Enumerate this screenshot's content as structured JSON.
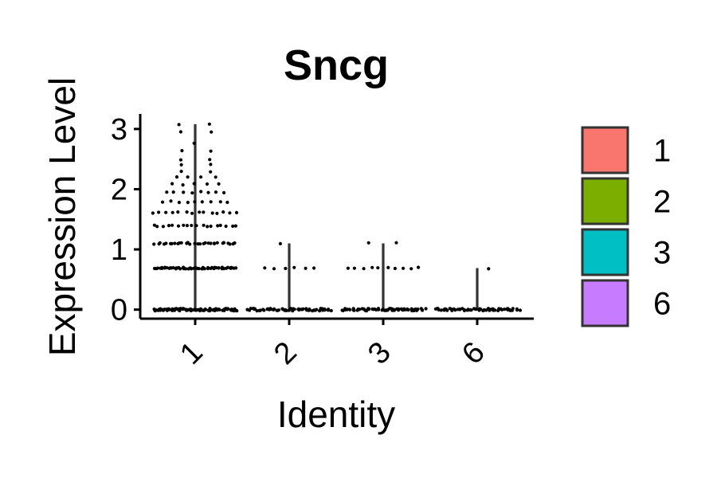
{
  "chart_data": {
    "type": "violin",
    "title": "Sncg",
    "xlabel": "Identity",
    "ylabel": "Expression Level",
    "categories": [
      "1",
      "2",
      "3",
      "6"
    ],
    "ylim": [
      -0.15,
      3.25
    ],
    "yticks": [
      0,
      1,
      2,
      3
    ],
    "y_tick_labels": [
      "0",
      "1",
      "2",
      "3"
    ],
    "x_tick_rotation_deg": 45,
    "grid": false,
    "legend": {
      "position": "right",
      "entries": [
        {
          "label": "1",
          "color": "#F8766D"
        },
        {
          "label": "2",
          "color": "#7CAE00"
        },
        {
          "label": "3",
          "color": "#00BFC4"
        },
        {
          "label": "6",
          "color": "#C77CFF"
        }
      ]
    },
    "series": [
      {
        "name": "1",
        "color": "#F8766D",
        "max": 3.08,
        "points": [
          {
            "y": 0,
            "n": 90
          },
          {
            "y": 0.69,
            "n": 55
          },
          {
            "y": 1.1,
            "n": 30
          },
          {
            "y": 1.39,
            "n": 18
          },
          {
            "y": 1.61,
            "n": 14
          },
          {
            "y": 1.79,
            "n": 9
          },
          {
            "y": 1.95,
            "n": 8
          },
          {
            "y": 2.08,
            "n": 5
          },
          {
            "y": 2.2,
            "n": 4
          },
          {
            "y": 2.3,
            "n": 2
          },
          {
            "y": 2.4,
            "n": 2
          },
          {
            "y": 2.48,
            "n": 2
          },
          {
            "y": 2.64,
            "n": 2
          },
          {
            "y": 2.77,
            "n": 1
          },
          {
            "y": 2.94,
            "n": 2
          },
          {
            "y": 3.07,
            "n": 2
          }
        ]
      },
      {
        "name": "2",
        "color": "#7CAE00",
        "max": 1.1,
        "points": [
          {
            "y": 0,
            "n": 60
          },
          {
            "y": 0.69,
            "n": 6
          },
          {
            "y": 1.1,
            "n": 1
          }
        ]
      },
      {
        "name": "3",
        "color": "#00BFC4",
        "max": 1.1,
        "points": [
          {
            "y": 0,
            "n": 65
          },
          {
            "y": 0.69,
            "n": 10
          },
          {
            "y": 1.1,
            "n": 2
          }
        ]
      },
      {
        "name": "6",
        "color": "#C77CFF",
        "max": 0.69,
        "points": [
          {
            "y": 0,
            "n": 60
          },
          {
            "y": 0.69,
            "n": 1
          }
        ]
      }
    ]
  }
}
